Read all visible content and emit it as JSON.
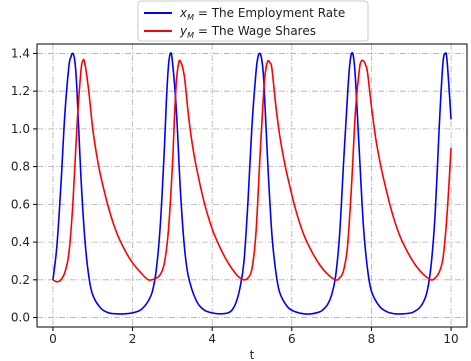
{
  "chart_data": {
    "type": "line",
    "title": "",
    "xlabel": "t",
    "ylabel": "",
    "xlim": [
      -0.4,
      10.4
    ],
    "ylim": [
      -0.05,
      1.45
    ],
    "xticks": [
      0,
      2,
      4,
      6,
      8,
      10
    ],
    "yticks": [
      0.0,
      0.2,
      0.4,
      0.6,
      0.8,
      1.0,
      1.2,
      1.4
    ],
    "xtick_labels": [
      "0",
      "2",
      "4",
      "6",
      "8",
      "10"
    ],
    "ytick_labels": [
      "0.0",
      "0.2",
      "0.4",
      "0.6",
      "0.8",
      "1.0",
      "1.2",
      "1.4"
    ],
    "grid": true,
    "legend_position": "top-center",
    "series": [
      {
        "name": "x_M = The Employment Rate",
        "legend_var": "x",
        "legend_sub": "M",
        "legend_text": " = The Employment Rate",
        "color": "#0000ff",
        "x": [
          0.0,
          0.1,
          0.2,
          0.3,
          0.4,
          0.45,
          0.5,
          0.55,
          0.6,
          0.7,
          0.8,
          0.9,
          1.0,
          1.2,
          1.4,
          1.6,
          1.8,
          2.0,
          2.2,
          2.3,
          2.4,
          2.5,
          2.6,
          2.7,
          2.8,
          2.85,
          2.9,
          2.95,
          3.0,
          3.1,
          3.2,
          3.3,
          3.4,
          3.6,
          3.8,
          4.0,
          4.2,
          4.4,
          4.5,
          4.6,
          4.7,
          4.8,
          4.9,
          5.0,
          5.1,
          5.15,
          5.2,
          5.25,
          5.3,
          5.4,
          5.5,
          5.6,
          5.7,
          5.9,
          6.1,
          6.3,
          6.5,
          6.7,
          6.8,
          6.9,
          7.0,
          7.1,
          7.2,
          7.3,
          7.4,
          7.45,
          7.5,
          7.55,
          7.6,
          7.7,
          7.8,
          7.9,
          8.0,
          8.2,
          8.4,
          8.6,
          8.8,
          9.0,
          9.1,
          9.2,
          9.3,
          9.4,
          9.5,
          9.6,
          9.7,
          9.75,
          9.8,
          9.85,
          9.9,
          10.0
        ],
        "y": [
          0.2,
          0.38,
          0.7,
          1.08,
          1.33,
          1.38,
          1.4,
          1.36,
          1.22,
          0.76,
          0.42,
          0.22,
          0.12,
          0.05,
          0.025,
          0.02,
          0.02,
          0.025,
          0.04,
          0.06,
          0.09,
          0.14,
          0.26,
          0.5,
          0.9,
          1.15,
          1.33,
          1.4,
          1.36,
          1.1,
          0.68,
          0.38,
          0.22,
          0.09,
          0.04,
          0.025,
          0.02,
          0.025,
          0.04,
          0.08,
          0.16,
          0.3,
          0.62,
          1.02,
          1.3,
          1.38,
          1.4,
          1.36,
          1.24,
          0.8,
          0.44,
          0.24,
          0.13,
          0.055,
          0.03,
          0.02,
          0.02,
          0.03,
          0.045,
          0.07,
          0.12,
          0.22,
          0.44,
          0.82,
          1.18,
          1.33,
          1.4,
          1.38,
          1.26,
          0.86,
          0.48,
          0.26,
          0.14,
          0.06,
          0.03,
          0.02,
          0.02,
          0.025,
          0.035,
          0.05,
          0.08,
          0.14,
          0.28,
          0.55,
          1.0,
          1.2,
          1.36,
          1.4,
          1.36,
          1.05
        ]
      },
      {
        "name": "y_M = The Wage Shares",
        "legend_var": "y",
        "legend_sub": "M",
        "legend_text": " = The Wage Shares",
        "color": "#ff0000",
        "x": [
          0.0,
          0.1,
          0.2,
          0.3,
          0.4,
          0.5,
          0.6,
          0.7,
          0.75,
          0.8,
          0.9,
          1.0,
          1.1,
          1.2,
          1.4,
          1.6,
          1.8,
          2.0,
          2.2,
          2.4,
          2.6,
          2.7,
          2.8,
          2.9,
          3.0,
          3.05,
          3.1,
          3.15,
          3.2,
          3.3,
          3.4,
          3.5,
          3.6,
          3.8,
          4.0,
          4.2,
          4.4,
          4.6,
          4.7,
          4.8,
          4.9,
          5.0,
          5.1,
          5.2,
          5.3,
          5.35,
          5.4,
          5.45,
          5.5,
          5.6,
          5.7,
          5.8,
          5.9,
          6.1,
          6.3,
          6.5,
          6.7,
          6.9,
          7.1,
          7.2,
          7.3,
          7.4,
          7.5,
          7.6,
          7.7,
          7.75,
          7.8,
          7.85,
          7.9,
          8.0,
          8.1,
          8.2,
          8.3,
          8.5,
          8.7,
          8.9,
          9.1,
          9.3,
          9.5,
          9.6,
          9.7,
          9.8,
          9.9,
          10.0
        ],
        "y": [
          0.2,
          0.19,
          0.2,
          0.24,
          0.34,
          0.6,
          1.0,
          1.3,
          1.36,
          1.35,
          1.2,
          1.0,
          0.86,
          0.75,
          0.58,
          0.45,
          0.36,
          0.29,
          0.24,
          0.2,
          0.21,
          0.23,
          0.29,
          0.46,
          0.8,
          1.05,
          1.25,
          1.34,
          1.36,
          1.28,
          1.08,
          0.92,
          0.8,
          0.61,
          0.47,
          0.37,
          0.29,
          0.23,
          0.21,
          0.2,
          0.21,
          0.26,
          0.45,
          0.85,
          1.22,
          1.32,
          1.36,
          1.35,
          1.32,
          1.12,
          0.96,
          0.84,
          0.74,
          0.57,
          0.44,
          0.35,
          0.28,
          0.23,
          0.2,
          0.21,
          0.25,
          0.38,
          0.7,
          1.1,
          1.32,
          1.36,
          1.36,
          1.34,
          1.3,
          1.12,
          0.96,
          0.84,
          0.74,
          0.57,
          0.44,
          0.35,
          0.28,
          0.23,
          0.2,
          0.21,
          0.24,
          0.32,
          0.55,
          0.9
        ]
      }
    ]
  }
}
